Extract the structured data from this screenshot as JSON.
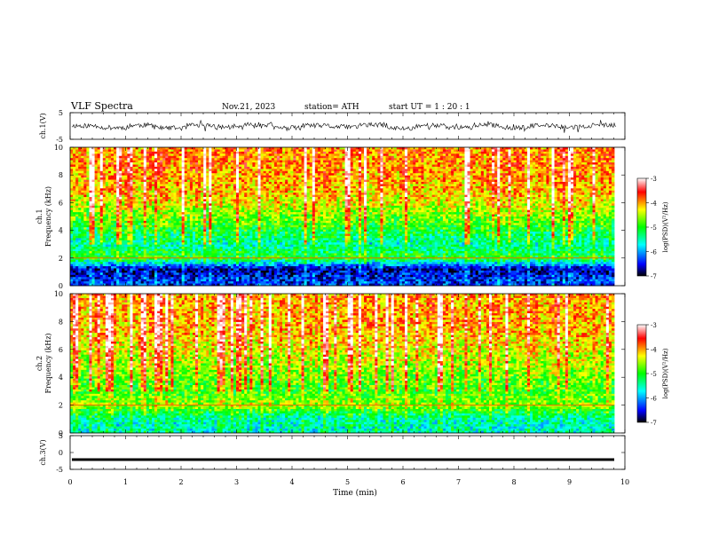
{
  "header": {
    "title": "VLF  Spectra",
    "date": "Nov.21, 2023",
    "station": "station= ATH",
    "start_ut": "start  UT  =    1  : 20 : 1"
  },
  "chart_data": [
    {
      "type": "line",
      "panel": "ch1-waveform",
      "ylabel": "ch.1(V)",
      "ylim": [
        -5,
        5
      ],
      "yticks": [
        "5",
        "-5"
      ],
      "xlim": [
        0,
        10
      ],
      "series": [
        {
          "values": [
            0.1,
            -0.6,
            0.3,
            -0.8,
            0.2,
            -0.4,
            0.5,
            -0.7,
            0.1,
            -0.3,
            0.4,
            -0.9,
            0.2,
            -0.5,
            0.3,
            -0.6,
            0.1,
            -0.4,
            0.2,
            -0.8
          ]
        }
      ],
      "color": "#000000"
    },
    {
      "type": "heatmap",
      "panel": "ch1-spectrogram",
      "ylabel": "ch.1\nFrequency  (kHz)",
      "ylim": [
        0,
        10
      ],
      "yticks": [
        "0",
        "2",
        "4",
        "6",
        "8",
        "10"
      ],
      "xlim": [
        0,
        10
      ],
      "colorbar": {
        "label": "log(PSD)(V²/Hz)",
        "ticks": [
          "-3",
          "-4",
          "-5",
          "-6",
          "-7"
        ],
        "range": [
          -7,
          -3
        ]
      },
      "frequency_profile_log_psd": [
        {
          "f_khz": 0.5,
          "value": -6.4
        },
        {
          "f_khz": 1.2,
          "value": -6.7
        },
        {
          "f_khz": 2.0,
          "value": -5.0
        },
        {
          "f_khz": 3.0,
          "value": -5.5
        },
        {
          "f_khz": 4.0,
          "value": -5.1
        },
        {
          "f_khz": 5.0,
          "value": -4.7
        },
        {
          "f_khz": 6.0,
          "value": -4.3
        },
        {
          "f_khz": 7.0,
          "value": -4.1
        },
        {
          "f_khz": 8.0,
          "value": -4.0
        },
        {
          "f_khz": 9.0,
          "value": -3.9
        },
        {
          "f_khz": 10.0,
          "value": -3.9
        }
      ]
    },
    {
      "type": "heatmap",
      "panel": "ch2-spectrogram",
      "ylabel": "ch.2\nFrequency  (kHz)",
      "ylim": [
        0,
        10
      ],
      "yticks": [
        "0",
        "2",
        "4",
        "6",
        "8",
        "10"
      ],
      "xlim": [
        0,
        10
      ],
      "colorbar": {
        "label": "log(PSD)(V²/Hz)",
        "ticks": [
          "-3",
          "-4",
          "-5",
          "-6",
          "-7"
        ],
        "range": [
          -7,
          -3
        ]
      },
      "frequency_profile_log_psd": [
        {
          "f_khz": 0.5,
          "value": -5.6
        },
        {
          "f_khz": 1.2,
          "value": -5.4
        },
        {
          "f_khz": 2.0,
          "value": -4.6
        },
        {
          "f_khz": 3.0,
          "value": -4.9
        },
        {
          "f_khz": 4.0,
          "value": -4.7
        },
        {
          "f_khz": 5.0,
          "value": -4.5
        },
        {
          "f_khz": 6.0,
          "value": -4.3
        },
        {
          "f_khz": 7.0,
          "value": -4.1
        },
        {
          "f_khz": 8.0,
          "value": -4.0
        },
        {
          "f_khz": 9.0,
          "value": -4.0
        },
        {
          "f_khz": 10.0,
          "value": -4.0
        }
      ]
    },
    {
      "type": "line",
      "panel": "ch3-waveform",
      "ylabel": "ch.3(V)",
      "ylim": [
        -5,
        5
      ],
      "yticks": [
        "5",
        "0",
        "-5"
      ],
      "xlim": [
        0,
        10
      ],
      "series": [
        {
          "values": [
            -2.1,
            -2.1,
            -2.1,
            -2.1,
            -2.1,
            -2.1,
            -2.1,
            -2.1,
            -2.1,
            -2.1
          ]
        }
      ],
      "color": "#000000"
    }
  ],
  "xaxis": {
    "label": "Time  (min)",
    "ticks": [
      "0",
      "1",
      "2",
      "3",
      "4",
      "5",
      "6",
      "7",
      "8",
      "9",
      "10"
    ],
    "range": [
      0,
      10
    ]
  },
  "colormap": [
    "#000000",
    "#0000ff",
    "#00ffff",
    "#00ff00",
    "#ffff00",
    "#ff0000",
    "#ffffff"
  ]
}
